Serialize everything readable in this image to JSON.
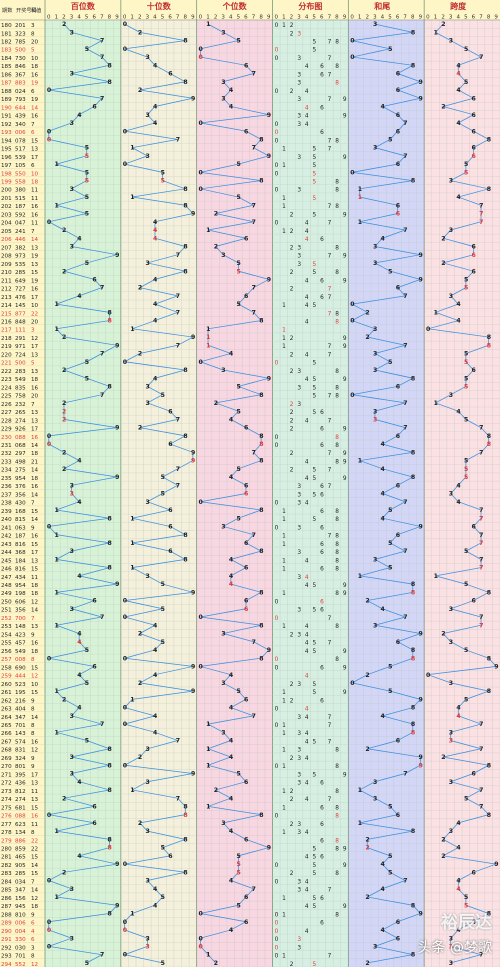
{
  "header": {
    "col_labels": [
      "期数",
      "开奖号码",
      "和值"
    ],
    "digits": [
      "0",
      "1",
      "2",
      "3",
      "4",
      "5",
      "6",
      "7",
      "8",
      "9"
    ]
  },
  "watermark": {
    "brand": "裕辰达",
    "source": "头条 @梦歌"
  },
  "chart_data": {
    "type": "line",
    "panels": [
      {
        "key": "hundreds",
        "title": "百位数",
        "bg": "#d8f2d8",
        "series": "hundreds"
      },
      {
        "key": "tens",
        "title": "十位数",
        "bg": "#f4f0dc",
        "series": "tens"
      },
      {
        "key": "units",
        "title": "个位数",
        "bg": "#f8d6e2",
        "series": "units"
      },
      {
        "key": "dist",
        "title": "分布图",
        "bg": "#d6efe2",
        "series": "dist"
      },
      {
        "key": "sumtail",
        "title": "和尾",
        "bg": "#d4d6f7",
        "series": "sum_tail"
      },
      {
        "key": "span",
        "title": "跨度",
        "bg": "#fbe0e4",
        "series": "span"
      }
    ],
    "rows": [
      {
        "issue": "180",
        "num": "201",
        "sum": "3"
      },
      {
        "issue": "181",
        "num": "323",
        "sum": "8"
      },
      {
        "issue": "182",
        "num": "785",
        "sum": "20"
      },
      {
        "issue": "183",
        "num": "500",
        "sum": "5"
      },
      {
        "issue": "184",
        "num": "730",
        "sum": "10"
      },
      {
        "issue": "185",
        "num": "846",
        "sum": "18"
      },
      {
        "issue": "186",
        "num": "367",
        "sum": "16"
      },
      {
        "issue": "187",
        "num": "883",
        "sum": "19"
      },
      {
        "issue": "188",
        "num": "024",
        "sum": "6"
      },
      {
        "issue": "189",
        "num": "793",
        "sum": "19"
      },
      {
        "issue": "190",
        "num": "644",
        "sum": "14"
      },
      {
        "issue": "191",
        "num": "439",
        "sum": "16"
      },
      {
        "issue": "192",
        "num": "340",
        "sum": "7"
      },
      {
        "issue": "193",
        "num": "006",
        "sum": "6"
      },
      {
        "issue": "194",
        "num": "078",
        "sum": "15"
      },
      {
        "issue": "195",
        "num": "517",
        "sum": "13"
      },
      {
        "issue": "196",
        "num": "539",
        "sum": "17"
      },
      {
        "issue": "197",
        "num": "105",
        "sum": "6"
      },
      {
        "issue": "198",
        "num": "550",
        "sum": "10"
      },
      {
        "issue": "199",
        "num": "558",
        "sum": "18"
      },
      {
        "issue": "200",
        "num": "380",
        "sum": "11"
      },
      {
        "issue": "201",
        "num": "515",
        "sum": "11"
      },
      {
        "issue": "202",
        "num": "187",
        "sum": "16"
      },
      {
        "issue": "203",
        "num": "592",
        "sum": "16"
      },
      {
        "issue": "204",
        "num": "047",
        "sum": "11"
      },
      {
        "issue": "205",
        "num": "241",
        "sum": "7"
      },
      {
        "issue": "206",
        "num": "446",
        "sum": "14"
      },
      {
        "issue": "207",
        "num": "382",
        "sum": "13"
      },
      {
        "issue": "208",
        "num": "973",
        "sum": "19"
      },
      {
        "issue": "209",
        "num": "535",
        "sum": "13"
      },
      {
        "issue": "210",
        "num": "285",
        "sum": "15"
      },
      {
        "issue": "211",
        "num": "649",
        "sum": "19"
      },
      {
        "issue": "212",
        "num": "727",
        "sum": "16"
      },
      {
        "issue": "213",
        "num": "476",
        "sum": "17"
      },
      {
        "issue": "214",
        "num": "145",
        "sum": "10"
      },
      {
        "issue": "215",
        "num": "877",
        "sum": "22"
      },
      {
        "issue": "216",
        "num": "848",
        "sum": "20"
      },
      {
        "issue": "217",
        "num": "111",
        "sum": "3"
      },
      {
        "issue": "218",
        "num": "291",
        "sum": "12"
      },
      {
        "issue": "219",
        "num": "971",
        "sum": "17"
      },
      {
        "issue": "220",
        "num": "724",
        "sum": "13"
      },
      {
        "issue": "221",
        "num": "500",
        "sum": "5"
      },
      {
        "issue": "222",
        "num": "283",
        "sum": "13"
      },
      {
        "issue": "223",
        "num": "549",
        "sum": "18"
      },
      {
        "issue": "224",
        "num": "835",
        "sum": "16"
      },
      {
        "issue": "225",
        "num": "758",
        "sum": "20"
      },
      {
        "issue": "226",
        "num": "232",
        "sum": "7"
      },
      {
        "issue": "227",
        "num": "265",
        "sum": "13"
      },
      {
        "issue": "228",
        "num": "274",
        "sum": "13"
      },
      {
        "issue": "229",
        "num": "926",
        "sum": "17"
      },
      {
        "issue": "230",
        "num": "088",
        "sum": "16"
      },
      {
        "issue": "231",
        "num": "068",
        "sum": "14"
      },
      {
        "issue": "232",
        "num": "297",
        "sum": "18"
      },
      {
        "issue": "233",
        "num": "498",
        "sum": "21"
      },
      {
        "issue": "234",
        "num": "275",
        "sum": "14"
      },
      {
        "issue": "235",
        "num": "954",
        "sum": "18"
      },
      {
        "issue": "236",
        "num": "376",
        "sum": "16"
      },
      {
        "issue": "237",
        "num": "356",
        "sum": "14"
      },
      {
        "issue": "238",
        "num": "430",
        "sum": "7"
      },
      {
        "issue": "239",
        "num": "168",
        "sum": "15"
      },
      {
        "issue": "240",
        "num": "815",
        "sum": "14"
      },
      {
        "issue": "241",
        "num": "063",
        "sum": "9"
      },
      {
        "issue": "242",
        "num": "187",
        "sum": "16"
      },
      {
        "issue": "243",
        "num": "816",
        "sum": "15"
      },
      {
        "issue": "244",
        "num": "368",
        "sum": "17"
      },
      {
        "issue": "245",
        "num": "184",
        "sum": "13"
      },
      {
        "issue": "246",
        "num": "816",
        "sum": "15"
      },
      {
        "issue": "247",
        "num": "434",
        "sum": "11"
      },
      {
        "issue": "248",
        "num": "954",
        "sum": "18"
      },
      {
        "issue": "249",
        "num": "198",
        "sum": "18"
      },
      {
        "issue": "250",
        "num": "606",
        "sum": "12"
      },
      {
        "issue": "251",
        "num": "356",
        "sum": "14"
      },
      {
        "issue": "252",
        "num": "700",
        "sum": "7"
      },
      {
        "issue": "253",
        "num": "148",
        "sum": "13"
      },
      {
        "issue": "254",
        "num": "423",
        "sum": "9"
      },
      {
        "issue": "255",
        "num": "457",
        "sum": "16"
      },
      {
        "issue": "256",
        "num": "549",
        "sum": "18"
      },
      {
        "issue": "257",
        "num": "008",
        "sum": "8"
      },
      {
        "issue": "258",
        "num": "690",
        "sum": "15"
      },
      {
        "issue": "259",
        "num": "444",
        "sum": "12"
      },
      {
        "issue": "260",
        "num": "523",
        "num2": "",
        "sum": "10"
      },
      {
        "issue": "261",
        "num": "195",
        "sum": "15"
      },
      {
        "issue": "262",
        "num": "216",
        "sum": "9"
      },
      {
        "issue": "263",
        "num": "404",
        "sum": "8"
      },
      {
        "issue": "264",
        "num": "347",
        "sum": "14"
      },
      {
        "issue": "265",
        "num": "701",
        "sum": "8"
      },
      {
        "issue": "266",
        "num": "143",
        "sum": "8"
      },
      {
        "issue": "267",
        "num": "574",
        "sum": "16"
      },
      {
        "issue": "268",
        "num": "831",
        "sum": "12"
      },
      {
        "issue": "269",
        "num": "324",
        "sum": "9"
      },
      {
        "issue": "270",
        "num": "801",
        "sum": "9"
      },
      {
        "issue": "271",
        "num": "395",
        "sum": "17"
      },
      {
        "issue": "272",
        "num": "436",
        "sum": "13"
      },
      {
        "issue": "273",
        "num": "812",
        "sum": "11"
      },
      {
        "issue": "274",
        "num": "274",
        "sum": "13"
      },
      {
        "issue": "275",
        "num": "681",
        "sum": "15"
      },
      {
        "issue": "276",
        "num": "088",
        "sum": "16"
      },
      {
        "issue": "277",
        "num": "623",
        "sum": "11"
      },
      {
        "issue": "278",
        "num": "134",
        "sum": "8"
      },
      {
        "issue": "279",
        "num": "886",
        "sum": "22"
      },
      {
        "issue": "280",
        "num": "859",
        "sum": "22"
      },
      {
        "issue": "281",
        "num": "465",
        "sum": "15"
      },
      {
        "issue": "282",
        "num": "905",
        "sum": "14"
      },
      {
        "issue": "283",
        "num": "285",
        "sum": "15"
      },
      {
        "issue": "284",
        "num": "034",
        "sum": "7"
      },
      {
        "issue": "285",
        "num": "347",
        "sum": "14"
      },
      {
        "issue": "286",
        "num": "156",
        "sum": "12"
      },
      {
        "issue": "287",
        "num": "945",
        "sum": "18"
      },
      {
        "issue": "288",
        "num": "810",
        "sum": "9"
      },
      {
        "issue": "289",
        "num": "006",
        "sum": "6"
      },
      {
        "issue": "290",
        "num": "004",
        "sum": "4"
      },
      {
        "issue": "291",
        "num": "330",
        "sum": "6"
      },
      {
        "issue": "292",
        "num": "030",
        "sum": "3"
      },
      {
        "issue": "293",
        "num": "701",
        "sum": "8"
      },
      {
        "issue": "294",
        "num": "552",
        "sum": "12"
      }
    ],
    "colors": {
      "line": "#3a8fe0",
      "num_text": "#222222",
      "highlight": "#e03a3a",
      "grid": "#b8c9b8",
      "header_bg": "#fff6c8",
      "title_red": "#c03030",
      "left_bg": "#fff6c8"
    }
  }
}
